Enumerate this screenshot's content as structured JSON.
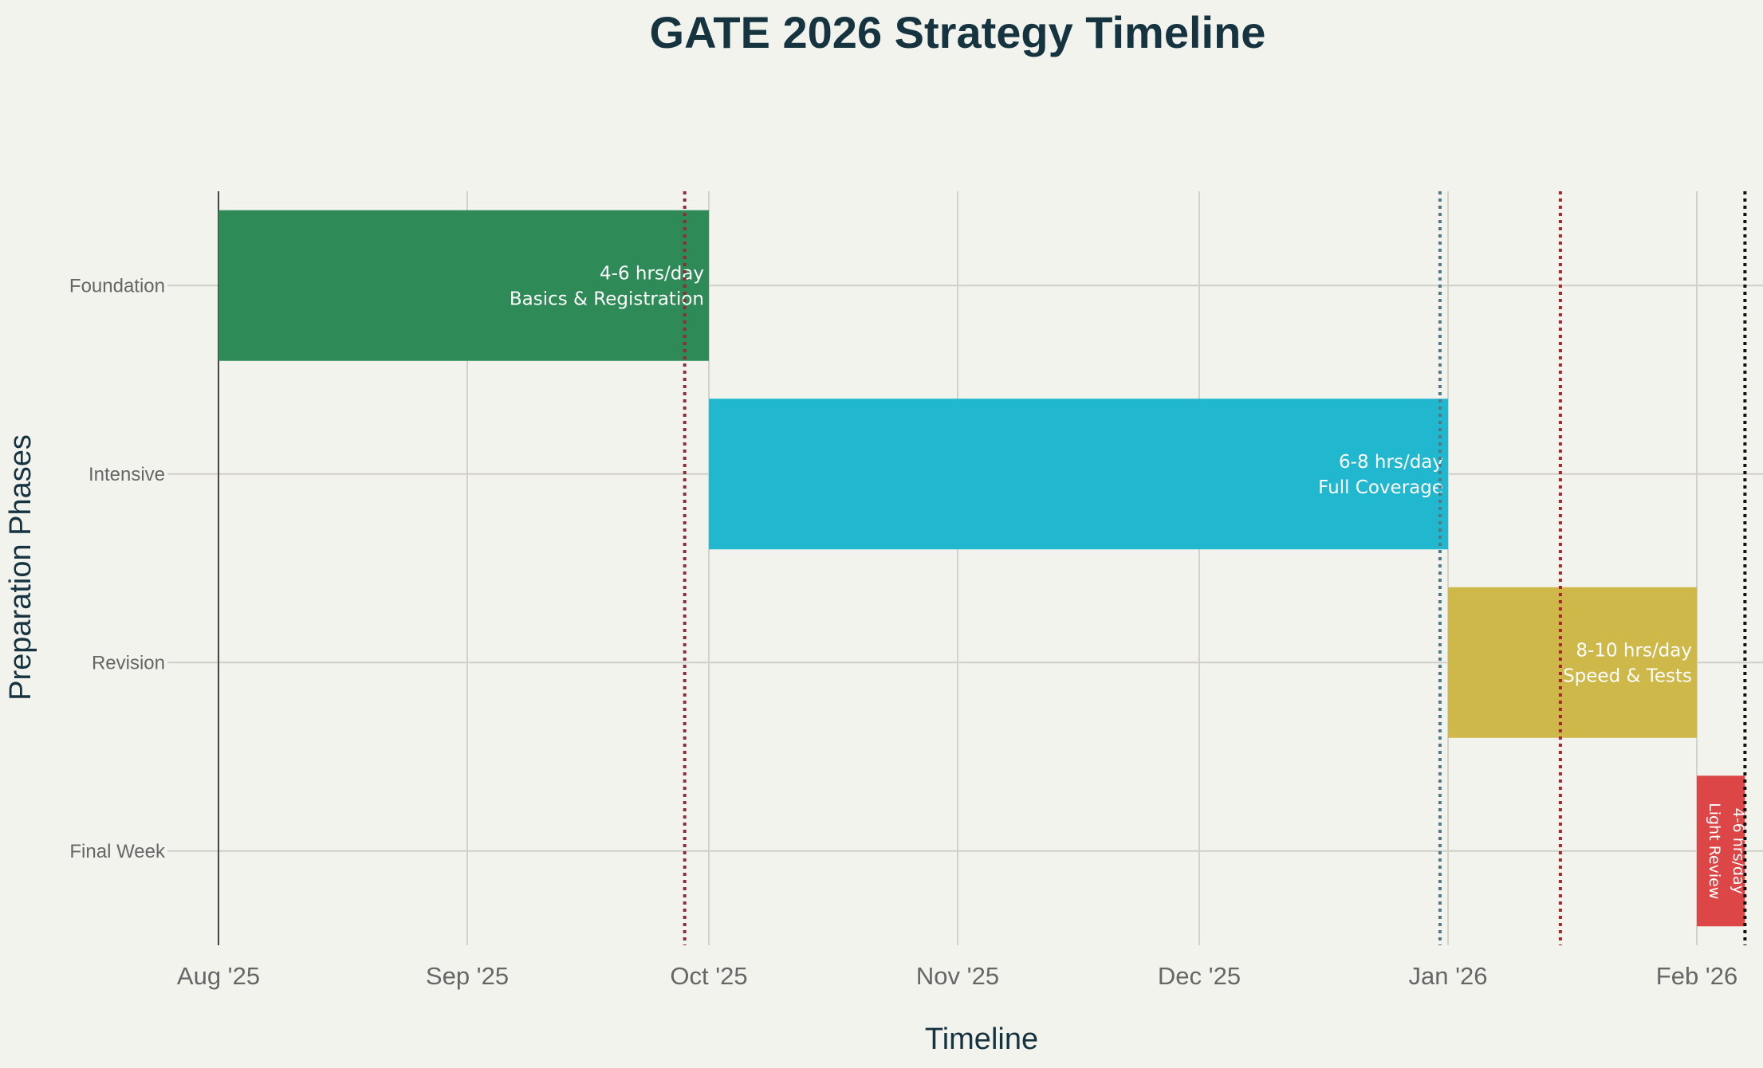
{
  "chart_data": {
    "type": "bar",
    "orientation": "horizontal",
    "subtype": "gantt",
    "title": "GATE 2026 Strategy Timeline",
    "xlabel": "Timeline",
    "ylabel": "Preparation Phases",
    "x_range": [
      "2025-08-01",
      "2026-02-07"
    ],
    "x_ticks": [
      {
        "date": "2025-08-01",
        "label": "Aug '25"
      },
      {
        "date": "2025-09-01",
        "label": "Sep '25"
      },
      {
        "date": "2025-10-01",
        "label": "Oct '25"
      },
      {
        "date": "2025-11-01",
        "label": "Nov '25"
      },
      {
        "date": "2025-12-01",
        "label": "Dec '25"
      },
      {
        "date": "2026-01-01",
        "label": "Jan '26"
      },
      {
        "date": "2026-02-01",
        "label": "Feb '26"
      }
    ],
    "grid": true,
    "phases": [
      {
        "name": "Foundation",
        "start": "2025-08-01",
        "end": "2025-10-01",
        "color": "#2e8b57",
        "label_lines": [
          "4-6 hrs/day",
          "Basics & Registration"
        ]
      },
      {
        "name": "Intensive",
        "start": "2025-10-01",
        "end": "2026-01-01",
        "color": "#20b7cf",
        "label_lines": [
          "6-8 hrs/day",
          "Full Coverage"
        ]
      },
      {
        "name": "Revision",
        "start": "2026-01-01",
        "end": "2026-02-01",
        "color": "#cfb84a",
        "label_lines": [
          "8-10 hrs/day",
          "Speed & Tests"
        ]
      },
      {
        "name": "Final Week",
        "start": "2026-02-01",
        "end": "2026-02-07",
        "color": "#dc4646",
        "label_lines": [
          "4-6 hrs/day",
          "Light Review"
        ]
      }
    ],
    "milestones": [
      {
        "date": "2025-09-28",
        "color": "#8b2e3a"
      },
      {
        "date": "2025-12-31",
        "color": "#4f7a86"
      },
      {
        "date": "2026-01-15",
        "color": "#a3282c"
      },
      {
        "date": "2026-02-07",
        "color": "#111111"
      }
    ]
  }
}
